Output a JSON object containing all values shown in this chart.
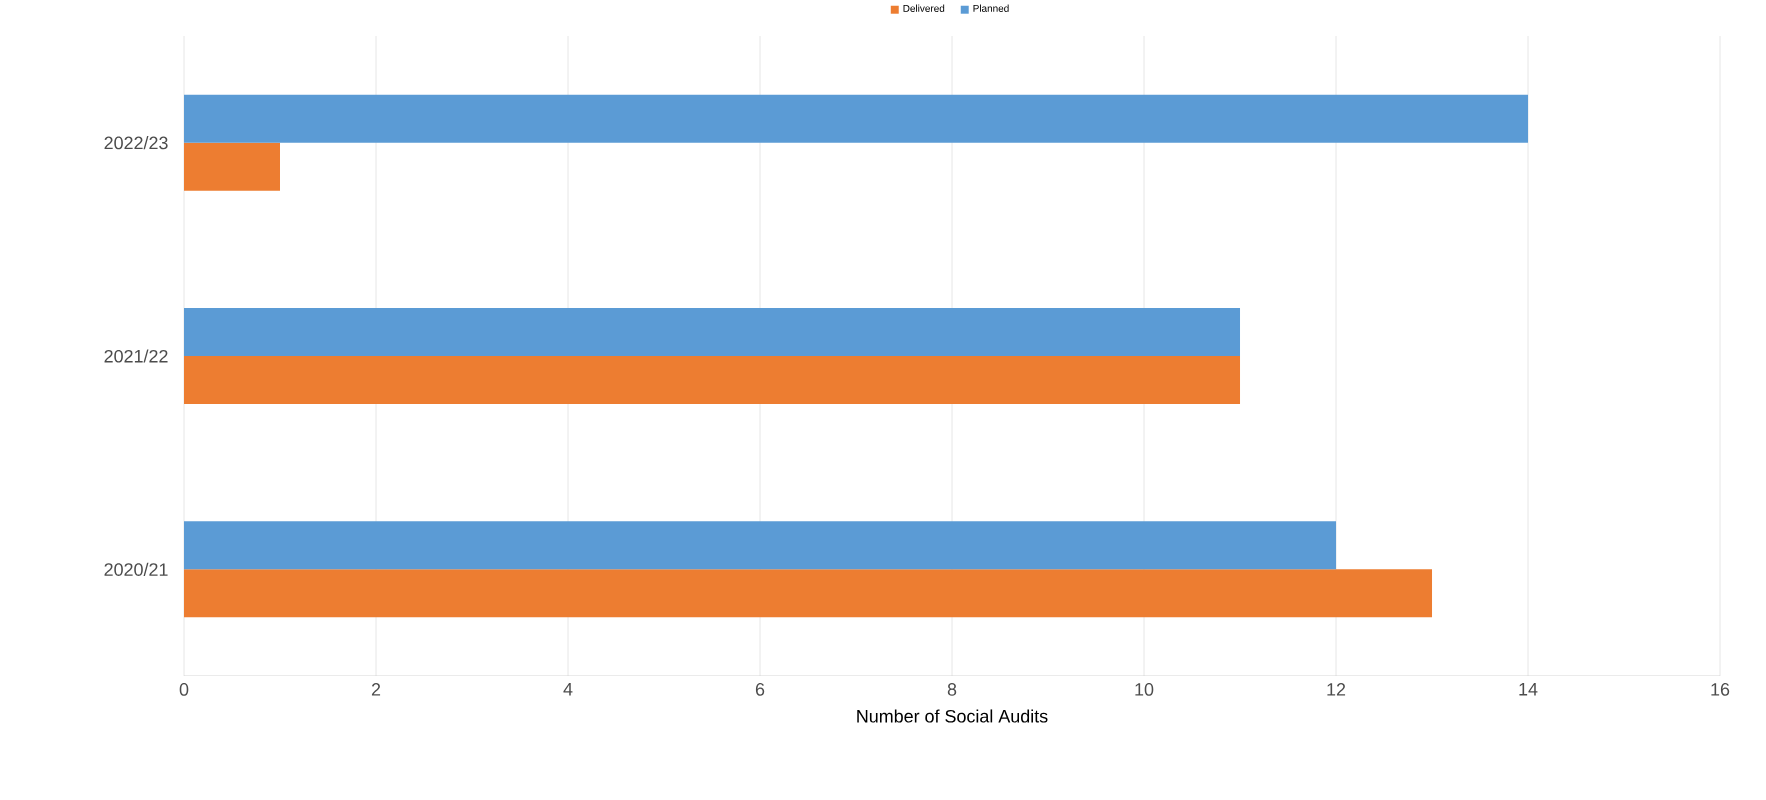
{
  "chart_data": {
    "type": "bar",
    "orientation": "horizontal",
    "xlabel": "Number of Social Audits",
    "categories": [
      "2022/23",
      "2021/22",
      "2020/21"
    ],
    "series": [
      {
        "name": "Delivered",
        "color": "#ed7d31",
        "values": [
          1,
          11,
          13
        ]
      },
      {
        "name": "Planned",
        "color": "#5b9bd5",
        "values": [
          14,
          11,
          12
        ]
      }
    ],
    "xlim": [
      0,
      16
    ],
    "xticks": [
      0,
      2,
      4,
      6,
      8,
      10,
      12,
      14,
      16
    ],
    "grid": "x",
    "legend": "top"
  }
}
